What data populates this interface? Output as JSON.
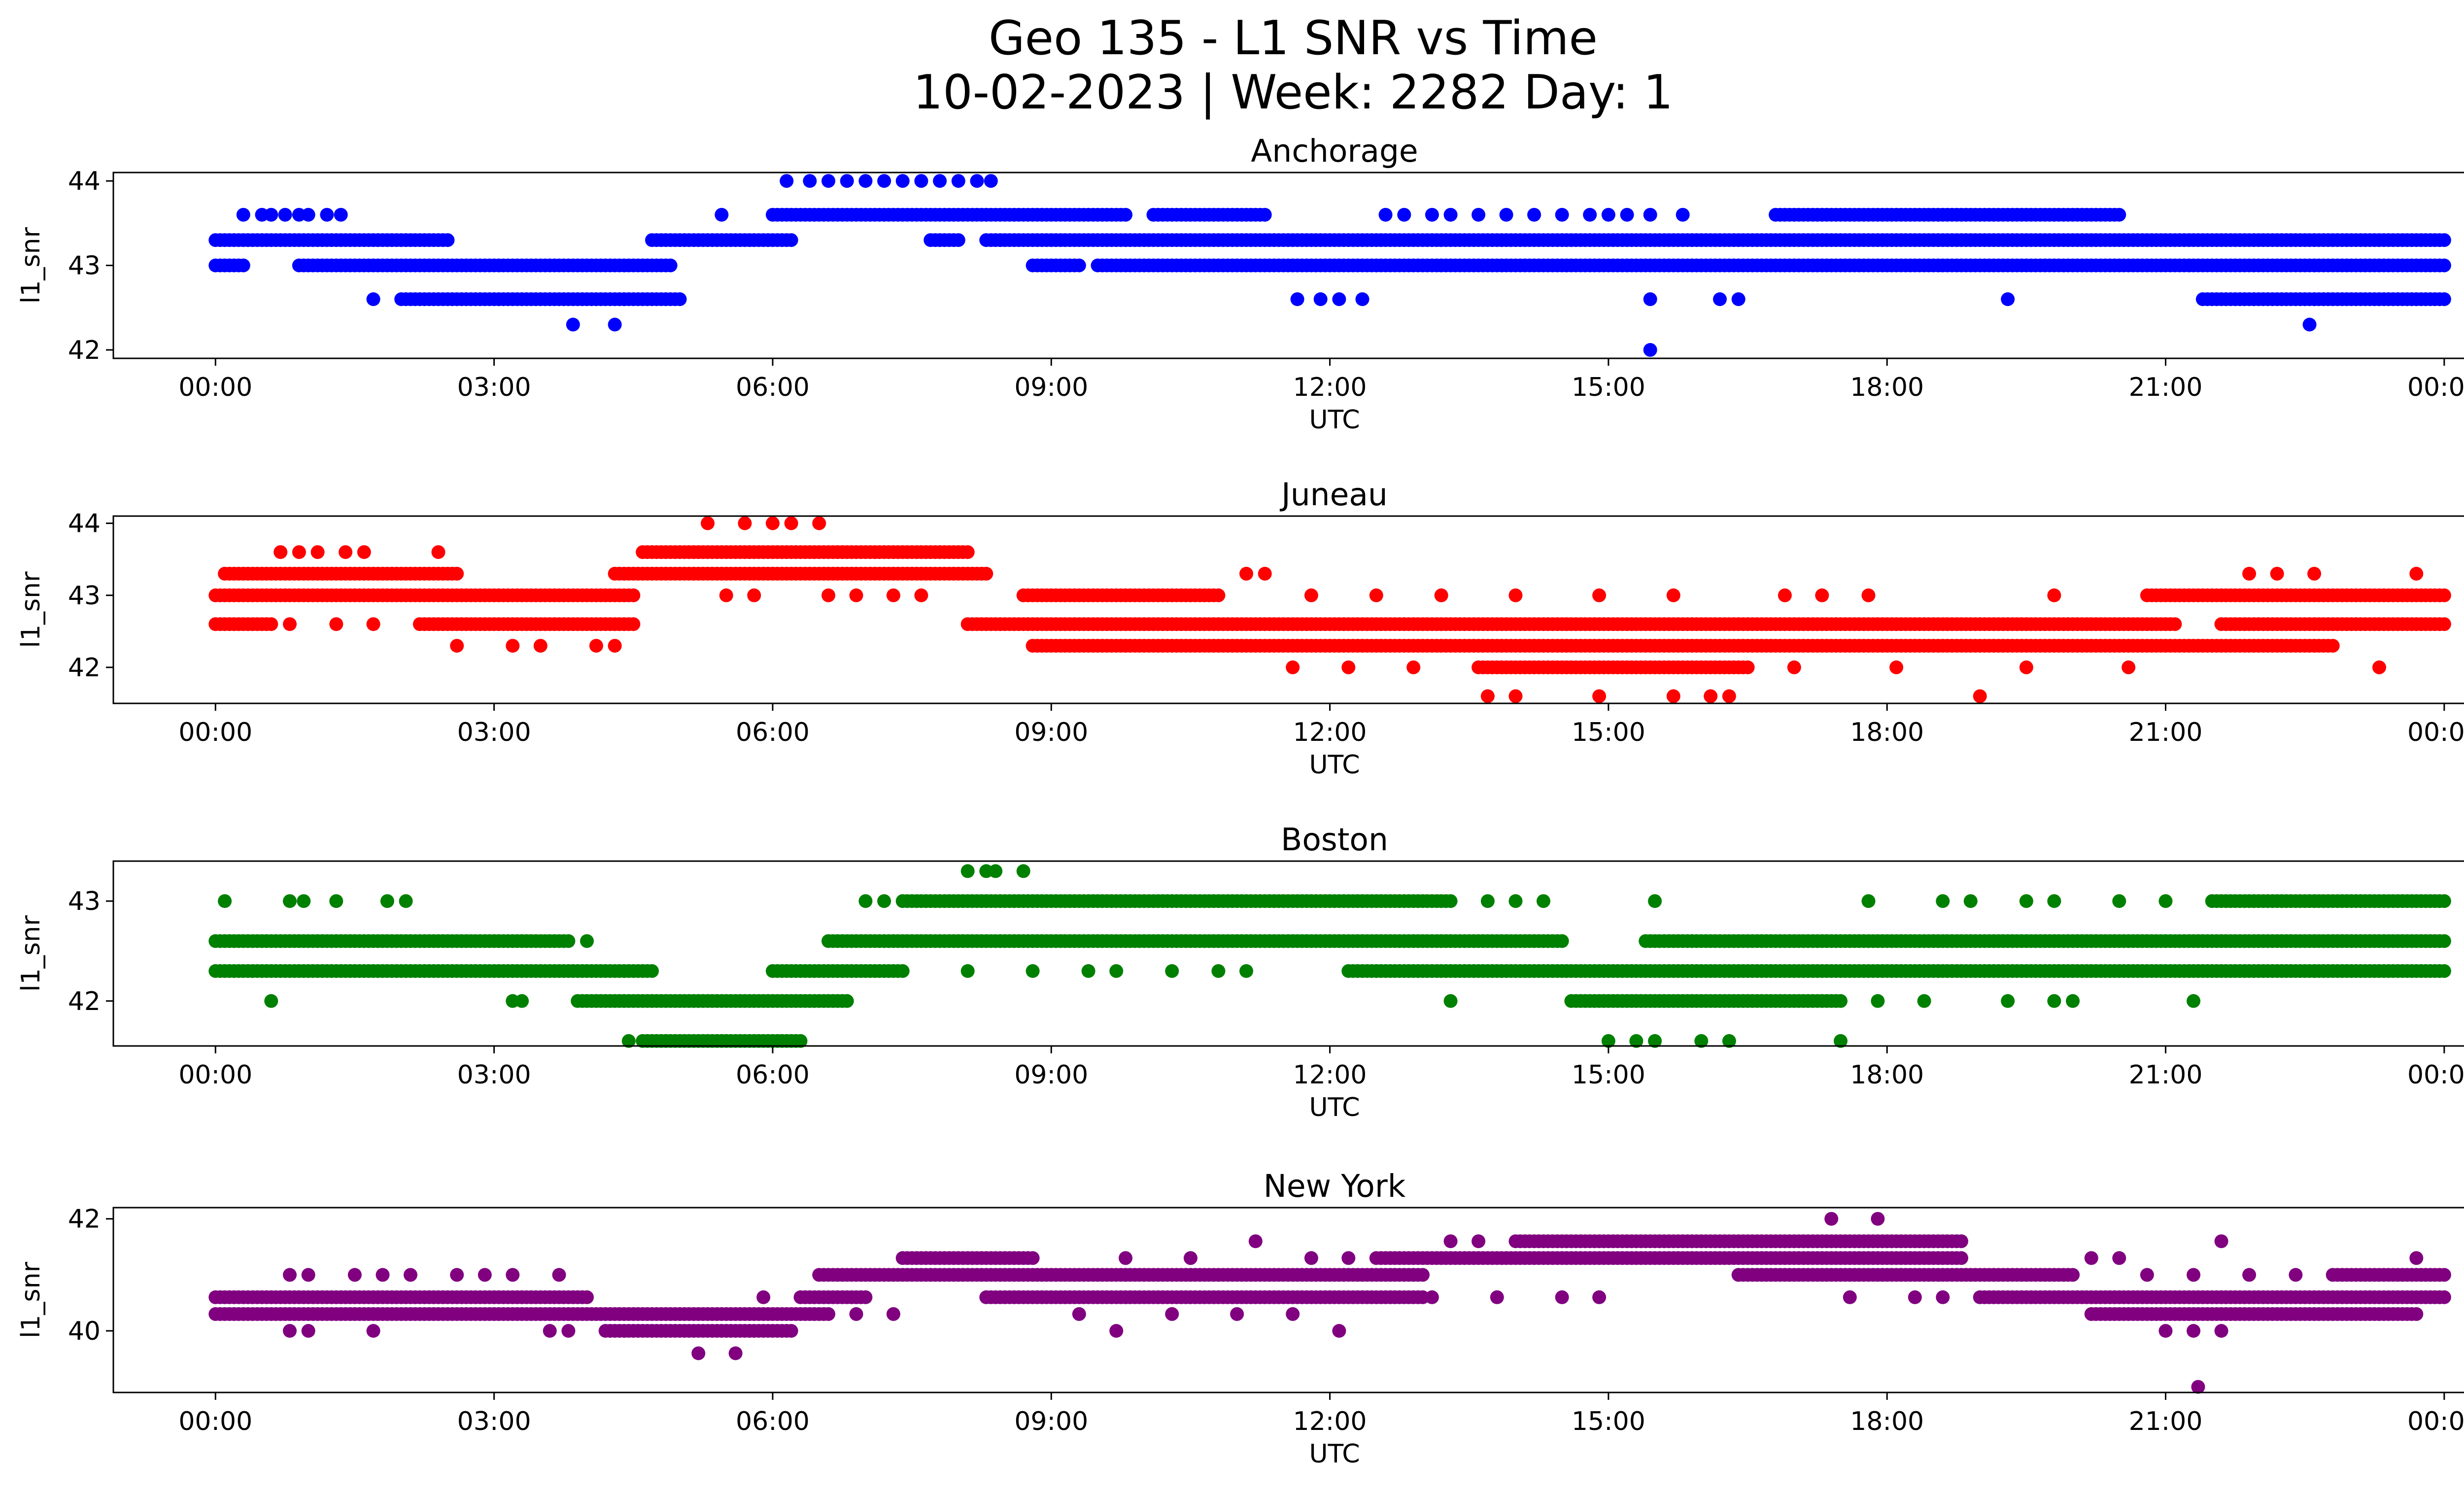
{
  "figure": {
    "title_line1": "Geo 135 - L1 SNR vs Time",
    "title_line2": "10-02-2023 | Week: 2282 Day: 1"
  },
  "chart_data": [
    {
      "type": "scatter",
      "title": "Anchorage",
      "xlabel": "UTC",
      "ylabel": "l1_snr",
      "color": "#0000ff",
      "xlim_hours": [
        -1.1,
        25.2
      ],
      "ylim": [
        41.9,
        44.1
      ],
      "xticks": [
        "00:00",
        "03:00",
        "06:00",
        "09:00",
        "12:00",
        "15:00",
        "18:00",
        "21:00",
        "00:00"
      ],
      "yticks": [
        42,
        43,
        44
      ],
      "bands": [
        {
          "y": 43.3,
          "ranges": [
            [
              0.0,
              2.5
            ],
            [
              4.7,
              6.2
            ],
            [
              7.7,
              8.0
            ],
            [
              8.3,
              24.0
            ]
          ]
        },
        {
          "y": 43.0,
          "ranges": [
            [
              0.0,
              0.3
            ],
            [
              0.9,
              4.9
            ],
            [
              8.8,
              9.3
            ],
            [
              9.5,
              24.0
            ]
          ]
        },
        {
          "y": 42.6,
          "ranges": [
            [
              2.0,
              5.0
            ],
            [
              21.4,
              24.0
            ]
          ]
        },
        {
          "y": 43.6,
          "ranges": [
            [
              6.0,
              9.8
            ],
            [
              10.1,
              11.3
            ],
            [
              16.8,
              20.5
            ]
          ]
        }
      ],
      "points": [
        {
          "x": 0.3,
          "y": 43.6
        },
        {
          "x": 0.5,
          "y": 43.6
        },
        {
          "x": 0.6,
          "y": 43.6
        },
        {
          "x": 0.75,
          "y": 43.6
        },
        {
          "x": 0.9,
          "y": 43.6
        },
        {
          "x": 1.0,
          "y": 43.6
        },
        {
          "x": 1.2,
          "y": 43.6
        },
        {
          "x": 1.35,
          "y": 43.6
        },
        {
          "x": 1.7,
          "y": 42.6
        },
        {
          "x": 3.85,
          "y": 42.3
        },
        {
          "x": 4.3,
          "y": 42.3
        },
        {
          "x": 5.45,
          "y": 43.6
        },
        {
          "x": 6.15,
          "y": 44.0
        },
        {
          "x": 6.4,
          "y": 44.0
        },
        {
          "x": 6.6,
          "y": 44.0
        },
        {
          "x": 6.8,
          "y": 44.0
        },
        {
          "x": 7.0,
          "y": 44.0
        },
        {
          "x": 7.2,
          "y": 44.0
        },
        {
          "x": 7.4,
          "y": 44.0
        },
        {
          "x": 7.6,
          "y": 44.0
        },
        {
          "x": 7.8,
          "y": 44.0
        },
        {
          "x": 8.0,
          "y": 44.0
        },
        {
          "x": 8.2,
          "y": 44.0
        },
        {
          "x": 8.35,
          "y": 44.0
        },
        {
          "x": 11.65,
          "y": 42.6
        },
        {
          "x": 11.9,
          "y": 42.6
        },
        {
          "x": 12.1,
          "y": 42.6
        },
        {
          "x": 12.35,
          "y": 42.6
        },
        {
          "x": 12.6,
          "y": 43.6
        },
        {
          "x": 12.8,
          "y": 43.6
        },
        {
          "x": 13.1,
          "y": 43.6
        },
        {
          "x": 13.3,
          "y": 43.6
        },
        {
          "x": 13.6,
          "y": 43.6
        },
        {
          "x": 13.9,
          "y": 43.6
        },
        {
          "x": 14.2,
          "y": 43.6
        },
        {
          "x": 14.5,
          "y": 43.6
        },
        {
          "x": 14.8,
          "y": 43.6
        },
        {
          "x": 15.0,
          "y": 43.6
        },
        {
          "x": 15.2,
          "y": 43.6
        },
        {
          "x": 15.45,
          "y": 43.6
        },
        {
          "x": 15.8,
          "y": 43.6
        },
        {
          "x": 15.45,
          "y": 42.6
        },
        {
          "x": 15.45,
          "y": 42.0
        },
        {
          "x": 16.2,
          "y": 42.6
        },
        {
          "x": 16.4,
          "y": 42.6
        },
        {
          "x": 19.3,
          "y": 42.6
        },
        {
          "x": 22.55,
          "y": 42.3
        }
      ]
    },
    {
      "type": "scatter",
      "title": "Juneau",
      "xlabel": "UTC",
      "ylabel": "l1_snr",
      "color": "#ff0000",
      "xlim_hours": [
        -1.1,
        25.2
      ],
      "ylim": [
        41.5,
        44.1
      ],
      "xticks": [
        "00:00",
        "03:00",
        "06:00",
        "09:00",
        "12:00",
        "15:00",
        "18:00",
        "21:00",
        "00:00"
      ],
      "yticks": [
        42,
        43,
        44
      ],
      "bands": [
        {
          "y": 43.0,
          "ranges": [
            [
              0.0,
              4.5
            ],
            [
              8.7,
              10.8
            ],
            [
              20.8,
              24.0
            ]
          ]
        },
        {
          "y": 42.6,
          "ranges": [
            [
              0.0,
              0.6
            ],
            [
              2.2,
              4.5
            ],
            [
              8.1,
              21.1
            ],
            [
              21.6,
              24.0
            ]
          ]
        },
        {
          "y": 43.3,
          "ranges": [
            [
              0.1,
              2.6
            ],
            [
              4.3,
              8.3
            ]
          ]
        },
        {
          "y": 43.6,
          "ranges": [
            [
              4.6,
              8.1
            ]
          ]
        },
        {
          "y": 42.3,
          "ranges": [
            [
              8.8,
              22.8
            ]
          ]
        },
        {
          "y": 42.0,
          "ranges": [
            [
              13.6,
              16.5
            ]
          ]
        }
      ],
      "points": [
        {
          "x": 0.7,
          "y": 43.6
        },
        {
          "x": 0.9,
          "y": 43.6
        },
        {
          "x": 1.1,
          "y": 43.6
        },
        {
          "x": 1.4,
          "y": 43.6
        },
        {
          "x": 1.6,
          "y": 43.6
        },
        {
          "x": 2.4,
          "y": 43.6
        },
        {
          "x": 0.8,
          "y": 42.6
        },
        {
          "x": 1.3,
          "y": 42.6
        },
        {
          "x": 1.7,
          "y": 42.6
        },
        {
          "x": 2.6,
          "y": 42.3
        },
        {
          "x": 3.2,
          "y": 42.3
        },
        {
          "x": 3.5,
          "y": 42.3
        },
        {
          "x": 4.1,
          "y": 42.3
        },
        {
          "x": 4.3,
          "y": 42.3
        },
        {
          "x": 5.3,
          "y": 44.0
        },
        {
          "x": 5.7,
          "y": 44.0
        },
        {
          "x": 6.0,
          "y": 44.0
        },
        {
          "x": 6.2,
          "y": 44.0
        },
        {
          "x": 6.5,
          "y": 44.0
        },
        {
          "x": 5.5,
          "y": 43.0
        },
        {
          "x": 5.8,
          "y": 43.0
        },
        {
          "x": 6.6,
          "y": 43.0
        },
        {
          "x": 6.9,
          "y": 43.0
        },
        {
          "x": 7.3,
          "y": 43.0
        },
        {
          "x": 7.6,
          "y": 43.0
        },
        {
          "x": 11.1,
          "y": 43.3
        },
        {
          "x": 11.3,
          "y": 43.3
        },
        {
          "x": 11.8,
          "y": 43.0
        },
        {
          "x": 12.5,
          "y": 43.0
        },
        {
          "x": 13.2,
          "y": 43.0
        },
        {
          "x": 14.0,
          "y": 43.0
        },
        {
          "x": 14.9,
          "y": 43.0
        },
        {
          "x": 15.7,
          "y": 43.0
        },
        {
          "x": 16.9,
          "y": 43.0
        },
        {
          "x": 17.3,
          "y": 43.0
        },
        {
          "x": 17.8,
          "y": 43.0
        },
        {
          "x": 19.8,
          "y": 43.0
        },
        {
          "x": 11.6,
          "y": 42.0
        },
        {
          "x": 12.2,
          "y": 42.0
        },
        {
          "x": 12.9,
          "y": 42.0
        },
        {
          "x": 17.0,
          "y": 42.0
        },
        {
          "x": 18.1,
          "y": 42.0
        },
        {
          "x": 19.5,
          "y": 42.0
        },
        {
          "x": 20.6,
          "y": 42.0
        },
        {
          "x": 23.3,
          "y": 42.0
        },
        {
          "x": 13.7,
          "y": 41.6
        },
        {
          "x": 14.0,
          "y": 41.6
        },
        {
          "x": 14.9,
          "y": 41.6
        },
        {
          "x": 15.7,
          "y": 41.6
        },
        {
          "x": 16.1,
          "y": 41.6
        },
        {
          "x": 16.3,
          "y": 41.6
        },
        {
          "x": 19.0,
          "y": 41.6
        },
        {
          "x": 21.9,
          "y": 43.3
        },
        {
          "x": 22.2,
          "y": 43.3
        },
        {
          "x": 22.6,
          "y": 43.3
        },
        {
          "x": 23.7,
          "y": 43.3
        }
      ]
    },
    {
      "type": "scatter",
      "title": "Boston",
      "xlabel": "UTC",
      "ylabel": "l1_snr",
      "color": "#008000",
      "xlim_hours": [
        -1.1,
        25.2
      ],
      "ylim": [
        41.55,
        43.4
      ],
      "xticks": [
        "00:00",
        "03:00",
        "06:00",
        "09:00",
        "12:00",
        "15:00",
        "18:00",
        "21:00",
        "00:00"
      ],
      "yticks": [
        42,
        43
      ],
      "bands": [
        {
          "y": 42.6,
          "ranges": [
            [
              0.0,
              3.8
            ],
            [
              6.6,
              14.5
            ],
            [
              15.4,
              24.0
            ]
          ]
        },
        {
          "y": 42.3,
          "ranges": [
            [
              0.0,
              4.7
            ],
            [
              6.0,
              7.4
            ],
            [
              12.2,
              24.0
            ]
          ]
        },
        {
          "y": 43.0,
          "ranges": [
            [
              7.4,
              13.3
            ],
            [
              21.5,
              24.0
            ]
          ]
        },
        {
          "y": 42.0,
          "ranges": [
            [
              3.9,
              6.8
            ],
            [
              14.6,
              17.5
            ]
          ]
        },
        {
          "y": 41.6,
          "ranges": [
            [
              4.6,
              6.3
            ]
          ]
        }
      ],
      "points": [
        {
          "x": 0.1,
          "y": 43.0
        },
        {
          "x": 0.8,
          "y": 43.0
        },
        {
          "x": 0.95,
          "y": 43.0
        },
        {
          "x": 1.3,
          "y": 43.0
        },
        {
          "x": 1.85,
          "y": 43.0
        },
        {
          "x": 2.05,
          "y": 43.0
        },
        {
          "x": 0.6,
          "y": 42.0
        },
        {
          "x": 3.2,
          "y": 42.0
        },
        {
          "x": 3.3,
          "y": 42.0
        },
        {
          "x": 4.0,
          "y": 42.6
        },
        {
          "x": 4.45,
          "y": 41.6
        },
        {
          "x": 7.0,
          "y": 43.0
        },
        {
          "x": 7.2,
          "y": 43.0
        },
        {
          "x": 8.1,
          "y": 43.3
        },
        {
          "x": 8.3,
          "y": 43.3
        },
        {
          "x": 8.4,
          "y": 43.3
        },
        {
          "x": 8.7,
          "y": 43.3
        },
        {
          "x": 8.1,
          "y": 42.3
        },
        {
          "x": 8.8,
          "y": 42.3
        },
        {
          "x": 9.4,
          "y": 42.3
        },
        {
          "x": 9.7,
          "y": 42.3
        },
        {
          "x": 10.3,
          "y": 42.3
        },
        {
          "x": 10.8,
          "y": 42.3
        },
        {
          "x": 11.1,
          "y": 42.3
        },
        {
          "x": 13.3,
          "y": 42.0
        },
        {
          "x": 13.7,
          "y": 43.0
        },
        {
          "x": 14.0,
          "y": 43.0
        },
        {
          "x": 14.3,
          "y": 43.0
        },
        {
          "x": 15.5,
          "y": 43.0
        },
        {
          "x": 15.0,
          "y": 41.6
        },
        {
          "x": 15.3,
          "y": 41.6
        },
        {
          "x": 15.5,
          "y": 41.6
        },
        {
          "x": 16.0,
          "y": 41.6
        },
        {
          "x": 16.3,
          "y": 41.6
        },
        {
          "x": 17.5,
          "y": 41.6
        },
        {
          "x": 17.8,
          "y": 43.0
        },
        {
          "x": 18.6,
          "y": 43.0
        },
        {
          "x": 18.9,
          "y": 43.0
        },
        {
          "x": 19.5,
          "y": 43.0
        },
        {
          "x": 19.8,
          "y": 43.0
        },
        {
          "x": 20.5,
          "y": 43.0
        },
        {
          "x": 21.0,
          "y": 43.0
        },
        {
          "x": 17.9,
          "y": 42.0
        },
        {
          "x": 18.4,
          "y": 42.0
        },
        {
          "x": 19.3,
          "y": 42.0
        },
        {
          "x": 19.8,
          "y": 42.0
        },
        {
          "x": 20.0,
          "y": 42.0
        },
        {
          "x": 21.3,
          "y": 42.0
        }
      ]
    },
    {
      "type": "scatter",
      "title": "New York",
      "xlabel": "UTC",
      "ylabel": "l1_snr",
      "color": "#800080",
      "xlim_hours": [
        -1.1,
        25.2
      ],
      "ylim": [
        38.9,
        42.2
      ],
      "xticks": [
        "00:00",
        "03:00",
        "06:00",
        "09:00",
        "12:00",
        "15:00",
        "18:00",
        "21:00",
        "00:00"
      ],
      "yticks": [
        40,
        42
      ],
      "bands": [
        {
          "y": 40.6,
          "ranges": [
            [
              0.0,
              4.0
            ],
            [
              6.3,
              7.0
            ],
            [
              8.3,
              13.0
            ],
            [
              19.0,
              24.0
            ]
          ]
        },
        {
          "y": 40.3,
          "ranges": [
            [
              0.0,
              6.6
            ],
            [
              20.2,
              23.7
            ]
          ]
        },
        {
          "y": 40.0,
          "ranges": [
            [
              4.2,
              6.2
            ]
          ]
        },
        {
          "y": 41.0,
          "ranges": [
            [
              6.5,
              13.0
            ],
            [
              16.4,
              20.0
            ],
            [
              22.8,
              24.0
            ]
          ]
        },
        {
          "y": 41.3,
          "ranges": [
            [
              7.4,
              8.8
            ],
            [
              12.5,
              18.8
            ]
          ]
        },
        {
          "y": 41.6,
          "ranges": [
            [
              14.0,
              18.8
            ]
          ]
        }
      ],
      "points": [
        {
          "x": 0.8,
          "y": 41.0
        },
        {
          "x": 1.0,
          "y": 41.0
        },
        {
          "x": 1.5,
          "y": 41.0
        },
        {
          "x": 1.8,
          "y": 41.0
        },
        {
          "x": 2.1,
          "y": 41.0
        },
        {
          "x": 2.6,
          "y": 41.0
        },
        {
          "x": 2.9,
          "y": 41.0
        },
        {
          "x": 3.2,
          "y": 41.0
        },
        {
          "x": 3.7,
          "y": 41.0
        },
        {
          "x": 0.8,
          "y": 40.0
        },
        {
          "x": 1.0,
          "y": 40.0
        },
        {
          "x": 1.7,
          "y": 40.0
        },
        {
          "x": 3.6,
          "y": 40.0
        },
        {
          "x": 3.8,
          "y": 40.0
        },
        {
          "x": 5.2,
          "y": 39.6
        },
        {
          "x": 5.6,
          "y": 39.6
        },
        {
          "x": 5.9,
          "y": 40.6
        },
        {
          "x": 6.9,
          "y": 40.3
        },
        {
          "x": 7.3,
          "y": 40.3
        },
        {
          "x": 9.3,
          "y": 40.3
        },
        {
          "x": 9.7,
          "y": 40.0
        },
        {
          "x": 9.8,
          "y": 41.3
        },
        {
          "x": 10.3,
          "y": 40.3
        },
        {
          "x": 10.5,
          "y": 41.3
        },
        {
          "x": 11.0,
          "y": 40.3
        },
        {
          "x": 11.2,
          "y": 41.6
        },
        {
          "x": 11.6,
          "y": 40.3
        },
        {
          "x": 11.8,
          "y": 41.3
        },
        {
          "x": 12.1,
          "y": 40.0
        },
        {
          "x": 12.2,
          "y": 41.3
        },
        {
          "x": 13.1,
          "y": 40.6
        },
        {
          "x": 13.3,
          "y": 41.6
        },
        {
          "x": 13.6,
          "y": 41.6
        },
        {
          "x": 13.8,
          "y": 40.6
        },
        {
          "x": 14.5,
          "y": 40.6
        },
        {
          "x": 14.9,
          "y": 40.6
        },
        {
          "x": 17.4,
          "y": 42.0
        },
        {
          "x": 17.9,
          "y": 42.0
        },
        {
          "x": 17.6,
          "y": 40.6
        },
        {
          "x": 18.3,
          "y": 40.6
        },
        {
          "x": 18.6,
          "y": 40.6
        },
        {
          "x": 20.2,
          "y": 41.3
        },
        {
          "x": 20.5,
          "y": 41.3
        },
        {
          "x": 20.8,
          "y": 41.0
        },
        {
          "x": 21.0,
          "y": 40.0
        },
        {
          "x": 21.3,
          "y": 40.0
        },
        {
          "x": 21.6,
          "y": 40.0
        },
        {
          "x": 21.3,
          "y": 41.0
        },
        {
          "x": 21.6,
          "y": 41.6
        },
        {
          "x": 21.9,
          "y": 41.0
        },
        {
          "x": 22.4,
          "y": 41.0
        },
        {
          "x": 21.35,
          "y": 39.0
        },
        {
          "x": 23.7,
          "y": 41.3
        }
      ]
    }
  ]
}
